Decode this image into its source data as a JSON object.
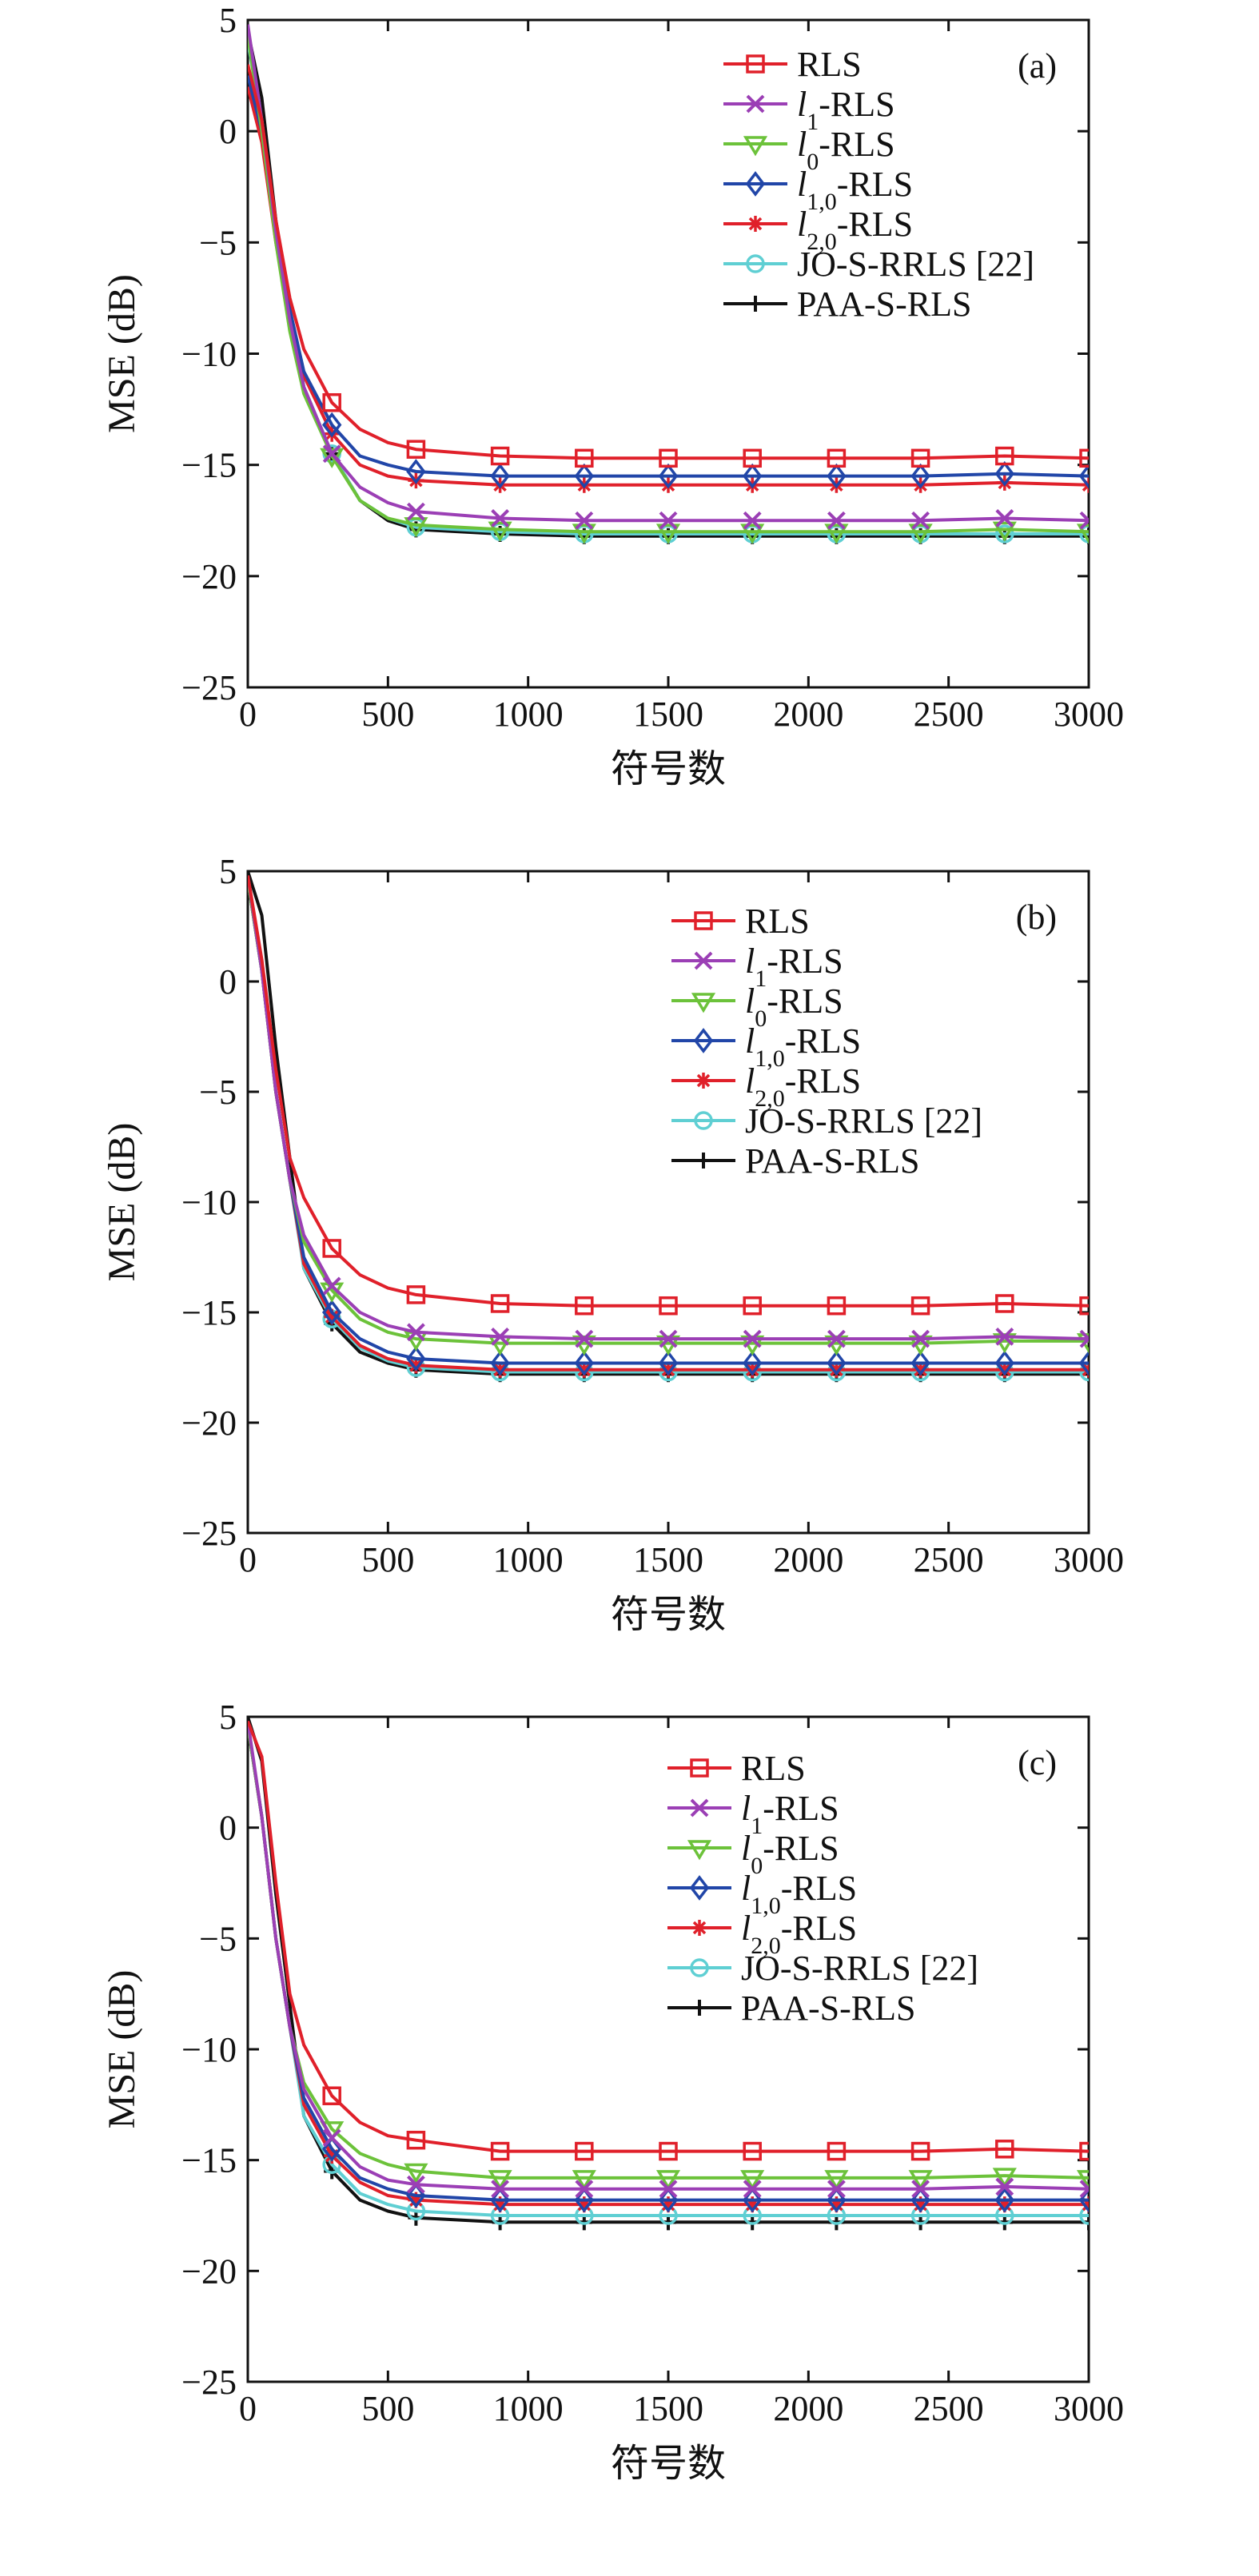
{
  "chart_data": [
    {
      "type": "line",
      "panel": "(a)",
      "xlabel": "符号数",
      "ylabel": "MSE (dB)",
      "xlim": [
        0,
        3000
      ],
      "ylim": [
        -25,
        5
      ],
      "xticks": [
        "0",
        "500",
        "1000",
        "1500",
        "2000",
        "2500",
        "3000"
      ],
      "yticks": [
        "5",
        "0",
        "−5",
        "−10",
        "−15",
        "−20",
        "−25"
      ],
      "legend_position": "top-right",
      "grid": false,
      "x": [
        0,
        50,
        100,
        150,
        200,
        300,
        400,
        500,
        600,
        900,
        1200,
        1500,
        1800,
        2100,
        2400,
        2700,
        3000
      ],
      "series": [
        {
          "name": "RLS",
          "color": "#e0202a",
          "marker": "square",
          "values": [
            3,
            0.5,
            -4,
            -7.5,
            -9.8,
            -12.2,
            -13.4,
            -14,
            -14.3,
            -14.6,
            -14.7,
            -14.7,
            -14.7,
            -14.7,
            -14.7,
            -14.6,
            -14.7
          ]
        },
        {
          "name": "l1-RLS",
          "color": "#9b3fb5",
          "marker": "x",
          "values": [
            4.8,
            0.5,
            -4.5,
            -8.5,
            -11.5,
            -14.5,
            -16,
            -16.7,
            -17.1,
            -17.4,
            -17.5,
            -17.5,
            -17.5,
            -17.5,
            -17.5,
            -17.4,
            -17.5
          ]
        },
        {
          "name": "l0-RLS",
          "color": "#6cc23a",
          "marker": "triangle-down",
          "values": [
            4.3,
            0,
            -5,
            -9,
            -11.8,
            -14.6,
            -16.6,
            -17.4,
            -17.7,
            -17.9,
            -18,
            -18,
            -18,
            -18,
            -18,
            -17.9,
            -18
          ]
        },
        {
          "name": "l1,0-RLS",
          "color": "#2146a8",
          "marker": "diamond",
          "values": [
            2.5,
            0,
            -4.5,
            -8,
            -10.8,
            -13.2,
            -14.6,
            -15,
            -15.3,
            -15.5,
            -15.5,
            -15.5,
            -15.5,
            -15.5,
            -15.5,
            -15.4,
            -15.5
          ]
        },
        {
          "name": "l2,0-RLS",
          "color": "#e0202a",
          "marker": "asterisk",
          "values": [
            2,
            -0.5,
            -5,
            -8.5,
            -11,
            -13.6,
            -15,
            -15.5,
            -15.7,
            -15.9,
            -15.9,
            -15.9,
            -15.9,
            -15.9,
            -15.9,
            -15.8,
            -15.9
          ]
        },
        {
          "name": "JO-S-RRLS [22]",
          "color": "#5fcfd3",
          "marker": "circle",
          "values": [
            4,
            0.5,
            -4.5,
            -8.5,
            -11.5,
            -14.5,
            -16.6,
            -17.4,
            -17.8,
            -18,
            -18.1,
            -18.1,
            -18.1,
            -18.1,
            -18.1,
            -18.1,
            -18.1
          ]
        },
        {
          "name": "PAA-S-RLS",
          "color": "#111111",
          "marker": "plus",
          "values": [
            4.5,
            1.5,
            -4,
            -8,
            -11.5,
            -14.5,
            -16.6,
            -17.5,
            -17.9,
            -18.1,
            -18.2,
            -18.2,
            -18.2,
            -18.2,
            -18.2,
            -18.2,
            -18.2
          ]
        }
      ]
    },
    {
      "type": "line",
      "panel": "(b)",
      "xlabel": "符号数",
      "ylabel": "MSE (dB)",
      "xlim": [
        0,
        3000
      ],
      "ylim": [
        -25,
        5
      ],
      "xticks": [
        "0",
        "500",
        "1000",
        "1500",
        "2000",
        "2500",
        "3000"
      ],
      "yticks": [
        "5",
        "0",
        "−5",
        "−10",
        "−15",
        "−20",
        "−25"
      ],
      "legend_position": "top-right",
      "grid": false,
      "x": [
        0,
        50,
        100,
        150,
        200,
        300,
        400,
        500,
        600,
        900,
        1200,
        1500,
        1800,
        2100,
        2400,
        2700,
        3000
      ],
      "series": [
        {
          "name": "RLS",
          "color": "#e0202a",
          "marker": "square",
          "values": [
            4.8,
            1,
            -4,
            -8,
            -9.8,
            -12.1,
            -13.3,
            -13.9,
            -14.2,
            -14.6,
            -14.7,
            -14.7,
            -14.7,
            -14.7,
            -14.7,
            -14.6,
            -14.7
          ]
        },
        {
          "name": "l1-RLS",
          "color": "#9b3fb5",
          "marker": "x",
          "values": [
            4.8,
            0.5,
            -5,
            -9,
            -11.5,
            -13.8,
            -15,
            -15.6,
            -15.9,
            -16.1,
            -16.2,
            -16.2,
            -16.2,
            -16.2,
            -16.2,
            -16.1,
            -16.2
          ]
        },
        {
          "name": "l0-RLS",
          "color": "#6cc23a",
          "marker": "triangle-down",
          "values": [
            4.6,
            0.5,
            -5,
            -9,
            -11.8,
            -14,
            -15.3,
            -15.9,
            -16.2,
            -16.4,
            -16.4,
            -16.4,
            -16.4,
            -16.4,
            -16.4,
            -16.3,
            -16.3
          ]
        },
        {
          "name": "l1,0-RLS",
          "color": "#2146a8",
          "marker": "diamond",
          "values": [
            4.6,
            0.5,
            -5,
            -9,
            -12.5,
            -15,
            -16.2,
            -16.8,
            -17.1,
            -17.3,
            -17.3,
            -17.3,
            -17.3,
            -17.3,
            -17.3,
            -17.3,
            -17.3
          ]
        },
        {
          "name": "l2,0-RLS",
          "color": "#e0202a",
          "marker": "asterisk",
          "values": [
            4.6,
            0.5,
            -5,
            -9,
            -12.8,
            -15.2,
            -16.5,
            -17.1,
            -17.4,
            -17.6,
            -17.6,
            -17.6,
            -17.6,
            -17.6,
            -17.6,
            -17.6,
            -17.6
          ]
        },
        {
          "name": "JO-S-RRLS [22]",
          "color": "#5fcfd3",
          "marker": "circle",
          "values": [
            4.6,
            0.5,
            -5,
            -9,
            -13,
            -15.3,
            -16.6,
            -17.2,
            -17.5,
            -17.7,
            -17.7,
            -17.7,
            -17.7,
            -17.7,
            -17.7,
            -17.7,
            -17.7
          ]
        },
        {
          "name": "PAA-S-RLS",
          "color": "#111111",
          "marker": "plus",
          "values": [
            5,
            3,
            -3,
            -8,
            -13,
            -15.5,
            -16.8,
            -17.3,
            -17.6,
            -17.8,
            -17.8,
            -17.8,
            -17.8,
            -17.8,
            -17.8,
            -17.8,
            -17.8
          ]
        }
      ]
    },
    {
      "type": "line",
      "panel": "(c)",
      "xlabel": "符号数",
      "ylabel": "MSE (dB)",
      "xlim": [
        0,
        3000
      ],
      "ylim": [
        -25,
        5
      ],
      "xticks": [
        "0",
        "500",
        "1000",
        "1500",
        "2000",
        "2500",
        "3000"
      ],
      "yticks": [
        "5",
        "0",
        "−5",
        "−10",
        "−15",
        "−20",
        "−25"
      ],
      "legend_position": "top-right",
      "grid": false,
      "x": [
        0,
        50,
        100,
        150,
        200,
        300,
        400,
        500,
        600,
        900,
        1200,
        1500,
        1800,
        2100,
        2400,
        2700,
        3000
      ],
      "series": [
        {
          "name": "RLS",
          "color": "#e0202a",
          "marker": "square",
          "values": [
            4.8,
            3.2,
            -2.5,
            -7.5,
            -9.8,
            -12.1,
            -13.3,
            -13.9,
            -14.1,
            -14.6,
            -14.6,
            -14.6,
            -14.6,
            -14.6,
            -14.6,
            -14.5,
            -14.6
          ]
        },
        {
          "name": "l1-RLS",
          "color": "#9b3fb5",
          "marker": "x",
          "values": [
            4.8,
            0.5,
            -5,
            -9,
            -11.8,
            -14,
            -15.3,
            -15.9,
            -16.1,
            -16.3,
            -16.3,
            -16.3,
            -16.3,
            -16.3,
            -16.3,
            -16.2,
            -16.3
          ]
        },
        {
          "name": "l0-RLS",
          "color": "#6cc23a",
          "marker": "triangle-down",
          "values": [
            4.6,
            0.5,
            -5,
            -9,
            -11.5,
            -13.6,
            -14.7,
            -15.2,
            -15.5,
            -15.8,
            -15.8,
            -15.8,
            -15.8,
            -15.8,
            -15.8,
            -15.7,
            -15.8
          ]
        },
        {
          "name": "l1,0-RLS",
          "color": "#2146a8",
          "marker": "diamond",
          "values": [
            4.6,
            0.5,
            -5,
            -9,
            -12.2,
            -14.5,
            -15.8,
            -16.3,
            -16.6,
            -16.8,
            -16.8,
            -16.8,
            -16.8,
            -16.8,
            -16.8,
            -16.8,
            -16.8
          ]
        },
        {
          "name": "l2,0-RLS",
          "color": "#e0202a",
          "marker": "asterisk",
          "values": [
            4.6,
            0.5,
            -5,
            -9,
            -12.5,
            -14.8,
            -16,
            -16.6,
            -16.8,
            -17,
            -17,
            -17,
            -17,
            -17,
            -17,
            -17,
            -17
          ]
        },
        {
          "name": "JO-S-RRLS [22]",
          "color": "#5fcfd3",
          "marker": "circle",
          "values": [
            4.6,
            0.5,
            -5,
            -9,
            -13,
            -15.2,
            -16.5,
            -17,
            -17.3,
            -17.5,
            -17.5,
            -17.5,
            -17.5,
            -17.5,
            -17.5,
            -17.5,
            -17.5
          ]
        },
        {
          "name": "PAA-S-RLS",
          "color": "#111111",
          "marker": "plus",
          "values": [
            5,
            3,
            -3,
            -8,
            -13,
            -15.5,
            -16.8,
            -17.3,
            -17.6,
            -17.8,
            -17.8,
            -17.8,
            -17.8,
            -17.8,
            -17.8,
            -17.8,
            -17.8
          ]
        }
      ]
    }
  ]
}
